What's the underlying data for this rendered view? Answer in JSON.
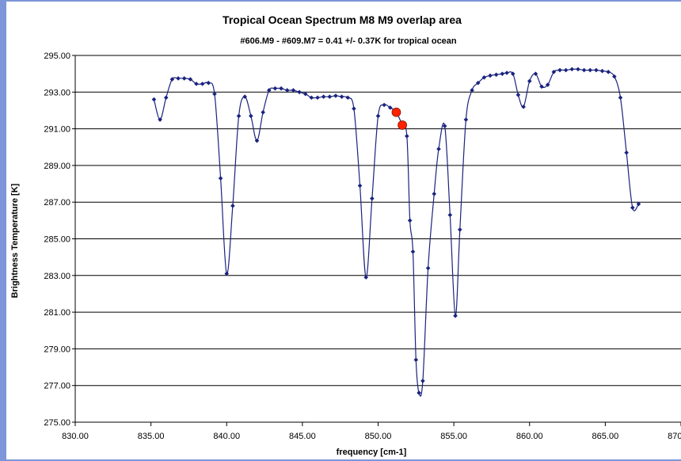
{
  "chart_data": {
    "type": "line",
    "title": "Tropical Ocean Spectrum M8 M9 overlap area",
    "subtitle": "#606.M9 - #609.M7 = 0.41 +/- 0.37K for tropical ocean",
    "xlabel": "frequency [cm-1]",
    "ylabel": "Brightness Temperature [K]",
    "xlim": [
      830,
      870
    ],
    "ylim": [
      275,
      295
    ],
    "xticks": [
      "830.00",
      "835.00",
      "840.00",
      "845.00",
      "850.00",
      "855.00",
      "860.00",
      "865.00",
      "870.00"
    ],
    "yticks": [
      "275.00",
      "277.00",
      "279.00",
      "281.00",
      "283.00",
      "285.00",
      "287.00",
      "289.00",
      "291.00",
      "293.00",
      "295.00"
    ],
    "grid": "horizontal",
    "legend": "none",
    "colors": {
      "series": "#1a237e",
      "highlight": "#ff2200"
    },
    "series": [
      {
        "x": [
          835.2,
          835.6,
          836.0,
          836.4,
          836.8,
          837.2,
          837.6,
          838.0,
          838.4,
          838.8,
          839.2,
          839.6,
          840.0,
          840.4,
          840.8,
          841.2,
          841.6,
          842.0,
          842.4,
          842.8,
          843.2,
          843.6,
          844.0,
          844.4,
          844.8,
          845.2,
          845.6,
          846.0,
          846.4,
          846.8,
          847.2,
          847.6,
          848.0,
          848.4,
          848.8,
          849.2,
          849.6,
          850.0,
          850.4,
          850.8,
          851.2,
          851.6,
          851.9,
          852.1,
          852.3,
          852.5,
          852.7,
          852.95,
          853.3,
          853.7,
          854.0,
          854.4,
          854.75,
          855.1,
          855.4,
          855.8,
          856.2,
          856.6,
          857.0,
          857.4,
          857.8,
          858.2,
          858.5,
          858.9,
          859.25,
          859.6,
          860.0,
          860.4,
          860.8,
          861.2,
          861.6,
          862.0,
          862.4,
          862.8,
          863.2,
          863.6,
          864.0,
          864.4,
          864.8,
          865.2,
          865.6,
          866.0,
          866.4,
          866.8,
          867.2
        ],
        "y": [
          292.6,
          291.5,
          292.7,
          293.7,
          293.75,
          293.75,
          293.7,
          293.45,
          293.45,
          293.5,
          292.9,
          288.3,
          283.1,
          286.8,
          291.7,
          292.75,
          291.7,
          290.35,
          291.9,
          293.1,
          293.2,
          293.2,
          293.1,
          293.1,
          293.0,
          292.9,
          292.7,
          292.7,
          292.75,
          292.75,
          292.8,
          292.75,
          292.7,
          292.1,
          287.9,
          282.9,
          287.2,
          291.7,
          292.3,
          292.15,
          291.9,
          291.2,
          290.6,
          286.0,
          284.3,
          278.4,
          276.6,
          277.25,
          283.4,
          287.45,
          289.9,
          291.15,
          286.3,
          280.8,
          285.5,
          291.5,
          293.1,
          293.5,
          293.8,
          293.9,
          293.95,
          294.0,
          294.05,
          294.0,
          292.85,
          292.2,
          293.6,
          294.0,
          293.3,
          293.4,
          294.1,
          294.2,
          294.2,
          294.25,
          294.25,
          294.2,
          294.2,
          294.2,
          294.15,
          294.1,
          293.85,
          292.7,
          289.7,
          286.7,
          286.9
        ]
      },
      {
        "x": [
          851.2,
          851.6
        ],
        "y": [
          291.9,
          291.2
        ]
      }
    ]
  }
}
